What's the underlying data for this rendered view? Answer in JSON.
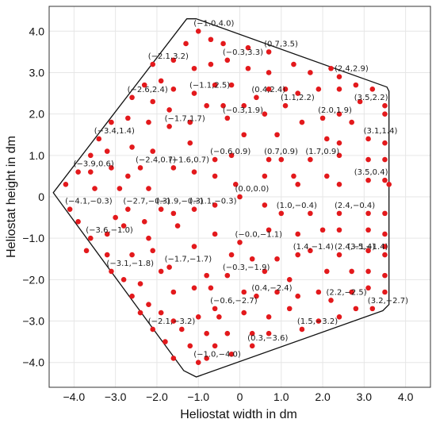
{
  "chart_data": {
    "type": "scatter",
    "xlabel": "Heliostat width in dm",
    "ylabel": "Heliostat height in dm",
    "xlim": [
      -4.6,
      4.6
    ],
    "ylim": [
      -4.6,
      4.6
    ],
    "xticks": [
      -4.0,
      -3.0,
      -2.0,
      -1.0,
      0,
      1.0,
      2.0,
      3.0,
      4.0
    ],
    "yticks": [
      4.0,
      3.0,
      2.0,
      1.0,
      0,
      -1.0,
      -2.0,
      -3.0,
      -4.0
    ],
    "xtick_labels": [
      "−4.0",
      "−3.0",
      "−2.0",
      "−1.0",
      "0",
      "1.0",
      "2.0",
      "3.0",
      "4.0"
    ],
    "ytick_labels": [
      "4.0",
      "3.0",
      "2.0",
      "1.0",
      "0",
      "−1.0",
      "−2.0",
      "−3.0",
      "−4.0"
    ],
    "grid": true,
    "point_color": "#e3191c",
    "boundary": [
      [
        -1.28,
        4.3
      ],
      [
        -1.05,
        4.3
      ],
      [
        3.55,
        2.65
      ],
      [
        3.6,
        2.55
      ],
      [
        3.6,
        -2.6
      ],
      [
        3.45,
        -2.75
      ],
      [
        -1.05,
        -4.35
      ],
      [
        -1.35,
        -4.2
      ],
      [
        -4.5,
        0.1
      ]
    ],
    "labeled_points": [
      {
        "x": -1.0,
        "y": 4.0,
        "label": "(−1.0,4.0)"
      },
      {
        "x": 0.7,
        "y": 3.5,
        "label": "(0.7,3.5)"
      },
      {
        "x": -0.3,
        "y": 3.3,
        "label": "(−0.3,3.3)"
      },
      {
        "x": 2.4,
        "y": 2.9,
        "label": "(2.4,2.9)"
      },
      {
        "x": -2.1,
        "y": 3.2,
        "label": "(−2.1,3.2)"
      },
      {
        "x": 0.4,
        "y": 2.4,
        "label": "(0.4,2.4)"
      },
      {
        "x": 3.5,
        "y": 2.2,
        "label": "(3.5,2.2)"
      },
      {
        "x": -2.6,
        "y": 2.4,
        "label": "(−2.6,2.4)"
      },
      {
        "x": -1.1,
        "y": 2.5,
        "label": "(−1.1,2.5)"
      },
      {
        "x": 1.1,
        "y": 2.2,
        "label": "(1.1,2.2)"
      },
      {
        "x": -0.3,
        "y": 1.9,
        "label": "(−0.3,1.9)"
      },
      {
        "x": 2.0,
        "y": 1.9,
        "label": "(2.0,1.9)"
      },
      {
        "x": -1.7,
        "y": 1.7,
        "label": "(−1.7,1.7)"
      },
      {
        "x": -3.4,
        "y": 1.4,
        "label": "(−3.4,1.4)"
      },
      {
        "x": 3.1,
        "y": 1.4,
        "label": "(3.1,1.4)"
      },
      {
        "x": 0.7,
        "y": 0.9,
        "label": "(0.7,0.9)"
      },
      {
        "x": 1.7,
        "y": 0.9,
        "label": "(1.7,0.9)"
      },
      {
        "x": -0.6,
        "y": 0.9,
        "label": "(−0.6,0.9)"
      },
      {
        "x": -2.4,
        "y": 0.7,
        "label": "(−2.4,0.7)"
      },
      {
        "x": -3.9,
        "y": 0.6,
        "label": "(−3.9,0.6)"
      },
      {
        "x": -1.6,
        "y": 0.7,
        "label": "(−1.6,0.7)"
      },
      {
        "x": 3.5,
        "y": 0.4,
        "label": "(3.5,0.4)"
      },
      {
        "x": 0.0,
        "y": 0.0,
        "label": "(0.0,0.0)"
      },
      {
        "x": -4.1,
        "y": -0.3,
        "label": "(−4.1,−0.3)"
      },
      {
        "x": -1.9,
        "y": -0.3,
        "label": "(−1.9,−0.3)"
      },
      {
        "x": -1.1,
        "y": -0.3,
        "label": "(−1.1,−0.3)"
      },
      {
        "x": 1.0,
        "y": -0.4,
        "label": "(1.0,−0.4)"
      },
      {
        "x": 2.4,
        "y": -0.4,
        "label": "(2.4,−0.4)"
      },
      {
        "x": -2.7,
        "y": -0.3,
        "label": "(−2.7,−0.3)"
      },
      {
        "x": -3.6,
        "y": -1.0,
        "label": "(−3.6,−1.0)"
      },
      {
        "x": -0.0,
        "y": -1.1,
        "label": "(−0.0,−1.1)"
      },
      {
        "x": 3.5,
        "y": -1.4,
        "label": "(3.5,−1.4)"
      },
      {
        "x": 1.4,
        "y": -1.4,
        "label": "(1.4,−1.4)"
      },
      {
        "x": 2.4,
        "y": -1.4,
        "label": "(2.4,−1.4)"
      },
      {
        "x": -3.1,
        "y": -1.8,
        "label": "(−3.1,−1.8)"
      },
      {
        "x": -1.7,
        "y": -1.7,
        "label": "(−1.7,−1.7)"
      },
      {
        "x": -0.3,
        "y": -1.9,
        "label": "(−0.3,−1.9)"
      },
      {
        "x": 2.2,
        "y": -2.5,
        "label": "(2.2,−2.5)"
      },
      {
        "x": 0.4,
        "y": -2.4,
        "label": "(0.4,−2.4)"
      },
      {
        "x": -0.6,
        "y": -2.7,
        "label": "(−0.6,−2.7)"
      },
      {
        "x": 3.2,
        "y": -2.7,
        "label": "(3.2,−2.7)"
      },
      {
        "x": -2.1,
        "y": -3.2,
        "label": "(−2.1,−3.2)"
      },
      {
        "x": 1.5,
        "y": -3.2,
        "label": "(1.5,−3.2)"
      },
      {
        "x": 0.3,
        "y": -3.6,
        "label": "(0.3,−3.6)"
      },
      {
        "x": -1.0,
        "y": -4.0,
        "label": "(−1.0,−4.0)"
      }
    ],
    "unlabeled_points": [
      {
        "x": -0.7,
        "y": 3.8
      },
      {
        "x": -1.3,
        "y": 3.7
      },
      {
        "x": -1.6,
        "y": 3.3
      },
      {
        "x": -0.4,
        "y": 3.7
      },
      {
        "x": 0.2,
        "y": 3.6
      },
      {
        "x": -1.1,
        "y": 3.1
      },
      {
        "x": -0.7,
        "y": 3.2
      },
      {
        "x": 0.2,
        "y": 3.1
      },
      {
        "x": 0.7,
        "y": 3.0
      },
      {
        "x": 1.3,
        "y": 3.2
      },
      {
        "x": 1.7,
        "y": 3.0
      },
      {
        "x": 2.2,
        "y": 3.1
      },
      {
        "x": 2.8,
        "y": 2.7
      },
      {
        "x": 3.2,
        "y": 2.6
      },
      {
        "x": -1.9,
        "y": 2.8
      },
      {
        "x": -1.6,
        "y": 2.6
      },
      {
        "x": -0.6,
        "y": 2.7
      },
      {
        "x": -0.2,
        "y": 2.7
      },
      {
        "x": 0.7,
        "y": 2.6
      },
      {
        "x": 1.1,
        "y": 2.6
      },
      {
        "x": 1.4,
        "y": 2.5
      },
      {
        "x": 1.9,
        "y": 2.6
      },
      {
        "x": 2.4,
        "y": 2.6
      },
      {
        "x": 2.9,
        "y": 2.3
      },
      {
        "x": -2.3,
        "y": 2.7
      },
      {
        "x": -2.1,
        "y": 2.3
      },
      {
        "x": -1.7,
        "y": 2.1
      },
      {
        "x": -0.8,
        "y": 2.2
      },
      {
        "x": -0.4,
        "y": 2.2
      },
      {
        "x": 0.1,
        "y": 2.2
      },
      {
        "x": 0.6,
        "y": 2.0
      },
      {
        "x": 1.5,
        "y": 1.8
      },
      {
        "x": 2.4,
        "y": 2.0
      },
      {
        "x": 2.7,
        "y": 1.8
      },
      {
        "x": 3.5,
        "y": 2.0
      },
      {
        "x": -3.1,
        "y": 1.8
      },
      {
        "x": -2.7,
        "y": 1.9
      },
      {
        "x": -2.2,
        "y": 1.8
      },
      {
        "x": -1.2,
        "y": 1.8
      },
      {
        "x": 0.1,
        "y": 1.5
      },
      {
        "x": 0.9,
        "y": 1.5
      },
      {
        "x": 2.1,
        "y": 1.4
      },
      {
        "x": 2.4,
        "y": 1.3
      },
      {
        "x": 3.5,
        "y": 1.3
      },
      {
        "x": -3.2,
        "y": 1.1
      },
      {
        "x": -2.6,
        "y": 1.2
      },
      {
        "x": -2.1,
        "y": 1.1
      },
      {
        "x": -1.2,
        "y": 1.3
      },
      {
        "x": -0.2,
        "y": 1.0
      },
      {
        "x": 1.0,
        "y": 0.9
      },
      {
        "x": 2.4,
        "y": 1.0
      },
      {
        "x": 3.1,
        "y": 0.9
      },
      {
        "x": 3.5,
        "y": 0.9
      },
      {
        "x": -3.6,
        "y": 1.0
      },
      {
        "x": -3.6,
        "y": 0.6
      },
      {
        "x": -3.1,
        "y": 0.7
      },
      {
        "x": -2.7,
        "y": 0.5
      },
      {
        "x": -1.1,
        "y": 0.6
      },
      {
        "x": -0.6,
        "y": 0.5
      },
      {
        "x": 0.6,
        "y": 0.5
      },
      {
        "x": 1.3,
        "y": 0.5
      },
      {
        "x": 2.1,
        "y": 0.5
      },
      {
        "x": 3.1,
        "y": 0.4
      },
      {
        "x": -4.2,
        "y": 0.3
      },
      {
        "x": -3.5,
        "y": 0.2
      },
      {
        "x": -2.9,
        "y": 0.2
      },
      {
        "x": -2.2,
        "y": 0.2
      },
      {
        "x": -0.1,
        "y": 0.3
      },
      {
        "x": 1.4,
        "y": 0.3
      },
      {
        "x": 2.4,
        "y": 0.3
      },
      {
        "x": 3.6,
        "y": 0.3
      },
      {
        "x": -3.0,
        "y": -0.5
      },
      {
        "x": -2.3,
        "y": -0.6
      },
      {
        "x": -1.6,
        "y": -0.4
      },
      {
        "x": -0.6,
        "y": -0.2
      },
      {
        "x": 0.6,
        "y": -0.2
      },
      {
        "x": 1.7,
        "y": -0.4
      },
      {
        "x": 3.1,
        "y": -0.4
      },
      {
        "x": 3.5,
        "y": -0.4
      },
      {
        "x": -3.9,
        "y": -0.6
      },
      {
        "x": -3.2,
        "y": -0.9
      },
      {
        "x": -2.8,
        "y": -0.7
      },
      {
        "x": -2.2,
        "y": -1.0
      },
      {
        "x": -1.5,
        "y": -0.7
      },
      {
        "x": -0.6,
        "y": -0.9
      },
      {
        "x": 0.7,
        "y": -0.8
      },
      {
        "x": 1.4,
        "y": -0.9
      },
      {
        "x": 2.0,
        "y": -0.8
      },
      {
        "x": 2.4,
        "y": -0.8
      },
      {
        "x": 3.1,
        "y": -0.8
      },
      {
        "x": 3.5,
        "y": -0.9
      },
      {
        "x": -3.2,
        "y": -1.4
      },
      {
        "x": -2.6,
        "y": -1.4
      },
      {
        "x": -2.1,
        "y": -1.3
      },
      {
        "x": -1.1,
        "y": -1.2
      },
      {
        "x": -0.2,
        "y": -1.4
      },
      {
        "x": 0.3,
        "y": -1.5
      },
      {
        "x": 0.9,
        "y": -1.5
      },
      {
        "x": 1.7,
        "y": -1.3
      },
      {
        "x": 3.1,
        "y": -1.3
      },
      {
        "x": 3.5,
        "y": -1.2
      },
      {
        "x": -3.7,
        "y": -1.3
      },
      {
        "x": -2.8,
        "y": -2.0
      },
      {
        "x": -2.4,
        "y": -2.1
      },
      {
        "x": -1.9,
        "y": -1.8
      },
      {
        "x": -0.8,
        "y": -1.9
      },
      {
        "x": 0.6,
        "y": -1.8
      },
      {
        "x": 1.2,
        "y": -2.0
      },
      {
        "x": 2.1,
        "y": -1.8
      },
      {
        "x": 2.7,
        "y": -1.8
      },
      {
        "x": 3.1,
        "y": -1.8
      },
      {
        "x": 3.5,
        "y": -1.9
      },
      {
        "x": -2.6,
        "y": -2.4
      },
      {
        "x": -2.2,
        "y": -2.6
      },
      {
        "x": -1.6,
        "y": -2.3
      },
      {
        "x": -1.1,
        "y": -2.2
      },
      {
        "x": -0.7,
        "y": -2.2
      },
      {
        "x": 0.1,
        "y": -2.3
      },
      {
        "x": 0.9,
        "y": -2.3
      },
      {
        "x": 1.4,
        "y": -2.4
      },
      {
        "x": 1.9,
        "y": -2.3
      },
      {
        "x": 2.7,
        "y": -2.3
      },
      {
        "x": 3.1,
        "y": -2.2
      },
      {
        "x": 3.5,
        "y": -2.3
      },
      {
        "x": -2.4,
        "y": -2.8
      },
      {
        "x": -1.9,
        "y": -2.8
      },
      {
        "x": -1.6,
        "y": -3.0
      },
      {
        "x": -1.0,
        "y": -2.9
      },
      {
        "x": -0.5,
        "y": -2.9
      },
      {
        "x": 0.1,
        "y": -2.8
      },
      {
        "x": 0.7,
        "y": -2.9
      },
      {
        "x": 1.2,
        "y": -2.7
      },
      {
        "x": 1.9,
        "y": -3.0
      },
      {
        "x": 2.4,
        "y": -2.9
      },
      {
        "x": 2.8,
        "y": -2.7
      },
      {
        "x": -1.4,
        "y": -3.2
      },
      {
        "x": -0.8,
        "y": -3.3
      },
      {
        "x": -0.3,
        "y": -3.3
      },
      {
        "x": 0.3,
        "y": -3.3
      },
      {
        "x": 0.7,
        "y": -3.3
      },
      {
        "x": -1.8,
        "y": -3.5
      },
      {
        "x": -1.2,
        "y": -3.6
      },
      {
        "x": -0.6,
        "y": -3.6
      },
      {
        "x": -0.2,
        "y": -3.8
      },
      {
        "x": -1.6,
        "y": -3.9
      },
      {
        "x": -0.8,
        "y": -3.9
      }
    ]
  }
}
